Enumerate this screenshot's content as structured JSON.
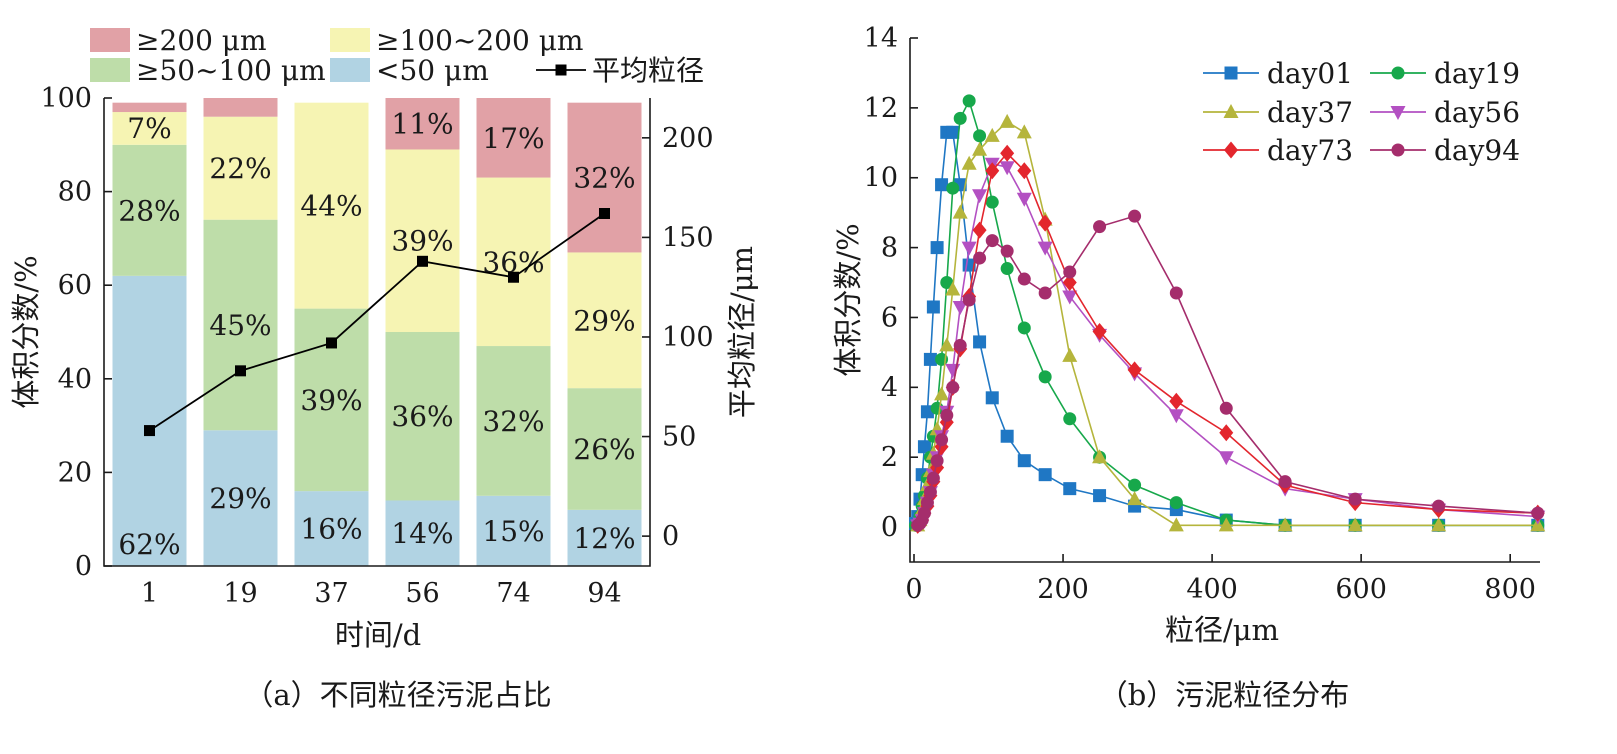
{
  "chart_data": [
    {
      "type": "bar",
      "stacked": true,
      "caption": "（a）不同粒径污泥占比",
      "xlabel": "时间/d",
      "ylabel": "体积分数/%",
      "y2label": "平均粒径/μm",
      "ylim": [
        0,
        100
      ],
      "y2lim": [
        -15,
        220
      ],
      "yticks": [
        0,
        20,
        40,
        60,
        80,
        100
      ],
      "y2ticks": [
        0,
        50,
        100,
        150,
        200
      ],
      "categories": [
        "1",
        "19",
        "37",
        "56",
        "74",
        "94"
      ],
      "series": [
        {
          "name": "<50 μm",
          "color": "#b1d3e3",
          "values": [
            62,
            29,
            16,
            14,
            15,
            12
          ],
          "labels": [
            "62%",
            "29%",
            "16%",
            "14%",
            "15%",
            "12%"
          ]
        },
        {
          "name": "≥50~100 μm",
          "color": "#bedda9",
          "values": [
            28,
            45,
            39,
            36,
            32,
            26
          ],
          "labels": [
            "28%",
            "45%",
            "39%",
            "36%",
            "32%",
            "26%"
          ]
        },
        {
          "name": "≥100~200 μm",
          "color": "#f6f4b3",
          "values": [
            7,
            22,
            44,
            39,
            36,
            29
          ],
          "labels": [
            "7%",
            "22%",
            "44%",
            "39%",
            "36%",
            "29%"
          ]
        },
        {
          "name": "≥200 μm",
          "color": "#e1a1a6",
          "values": [
            2,
            4,
            0,
            11,
            17,
            32
          ],
          "labels": [
            "",
            "",
            "",
            "11%",
            "17%",
            "32%"
          ]
        }
      ],
      "line": {
        "name": "平均粒径",
        "color": "#000000",
        "values": [
          53,
          83,
          97,
          138,
          130,
          162
        ]
      },
      "legend_position": "top"
    },
    {
      "type": "line",
      "caption": "（b）污泥粒径分布",
      "xlabel": "粒径/μm",
      "ylabel": "体积分数/%",
      "xlim": [
        0,
        840
      ],
      "ylim": [
        -1,
        14
      ],
      "xticks": [
        0,
        200,
        400,
        600,
        800
      ],
      "yticks": [
        0,
        2,
        4,
        6,
        8,
        10,
        12,
        14
      ],
      "legend_position": "top-right",
      "series": [
        {
          "name": "day01",
          "color": "#1f77c4",
          "marker": "square",
          "x": [
            2,
            5,
            8,
            11,
            14,
            18,
            22,
            26,
            31,
            37,
            44,
            52,
            62,
            74,
            88,
            105,
            125,
            148,
            176,
            209,
            249,
            296,
            352,
            419,
            498,
            592,
            704,
            837
          ],
          "y": [
            0.1,
            0.3,
            0.8,
            1.5,
            2.3,
            3.3,
            4.8,
            6.3,
            8.0,
            9.8,
            11.3,
            11.3,
            9.8,
            7.5,
            5.3,
            3.7,
            2.6,
            1.9,
            1.5,
            1.1,
            0.9,
            0.6,
            0.5,
            0.2,
            0.05,
            0.05,
            0.05,
            0.05
          ]
        },
        {
          "name": "day19",
          "color": "#17a84b",
          "marker": "circle",
          "x": [
            2,
            5,
            8,
            11,
            14,
            18,
            22,
            26,
            31,
            37,
            44,
            52,
            62,
            74,
            88,
            105,
            125,
            148,
            176,
            209,
            249,
            296,
            352,
            419,
            498,
            592,
            704,
            837
          ],
          "y": [
            0.05,
            0.1,
            0.3,
            0.6,
            0.9,
            1.4,
            2.0,
            2.6,
            3.4,
            4.8,
            7.0,
            9.7,
            11.7,
            12.2,
            11.2,
            9.3,
            7.4,
            5.7,
            4.3,
            3.1,
            2.0,
            1.2,
            0.7,
            0.2,
            0.05,
            0.05,
            0.05,
            0.05
          ]
        },
        {
          "name": "day37",
          "color": "#b5b53c",
          "marker": "triangle-up",
          "x": [
            5,
            8,
            11,
            14,
            18,
            22,
            26,
            31,
            37,
            44,
            52,
            62,
            74,
            88,
            105,
            125,
            148,
            176,
            209,
            249,
            296,
            352,
            419,
            498,
            592,
            704,
            837
          ],
          "y": [
            0.05,
            0.2,
            0.5,
            0.8,
            1.2,
            1.6,
            2.1,
            2.8,
            3.8,
            5.2,
            6.8,
            9.0,
            10.4,
            10.8,
            11.2,
            11.6,
            11.3,
            8.8,
            4.9,
            2.0,
            0.8,
            0.05,
            0.05,
            0.05,
            0.05,
            0.05,
            0.05
          ]
        },
        {
          "name": "day56",
          "color": "#b350c2",
          "marker": "triangle-down",
          "x": [
            5,
            8,
            11,
            14,
            18,
            22,
            26,
            31,
            37,
            44,
            52,
            62,
            74,
            88,
            105,
            125,
            148,
            176,
            209,
            249,
            296,
            352,
            419,
            498,
            592,
            704,
            837
          ],
          "y": [
            0.05,
            0.1,
            0.2,
            0.4,
            0.7,
            1.0,
            1.5,
            2.0,
            2.6,
            3.3,
            4.5,
            6.3,
            8.0,
            9.5,
            10.4,
            10.3,
            9.4,
            8.0,
            6.6,
            5.5,
            4.4,
            3.2,
            2.0,
            1.1,
            0.8,
            0.5,
            0.3
          ]
        },
        {
          "name": "day73",
          "color": "#e3262d",
          "marker": "diamond",
          "x": [
            5,
            8,
            11,
            14,
            18,
            22,
            26,
            31,
            37,
            44,
            52,
            62,
            74,
            88,
            105,
            125,
            148,
            176,
            209,
            249,
            296,
            352,
            419,
            498,
            592,
            704,
            837
          ],
          "y": [
            0.05,
            0.1,
            0.2,
            0.4,
            0.6,
            0.9,
            1.3,
            1.7,
            2.3,
            3.0,
            4.0,
            5.1,
            6.6,
            8.5,
            10.2,
            10.7,
            10.2,
            8.7,
            7.0,
            5.6,
            4.5,
            3.6,
            2.7,
            1.2,
            0.7,
            0.5,
            0.4
          ]
        },
        {
          "name": "day94",
          "color": "#a52d6c",
          "marker": "circle",
          "x": [
            5,
            8,
            11,
            14,
            18,
            22,
            26,
            31,
            37,
            44,
            52,
            62,
            74,
            88,
            105,
            125,
            148,
            176,
            209,
            249,
            296,
            352,
            419,
            498,
            592,
            704,
            837
          ],
          "y": [
            0.05,
            0.1,
            0.2,
            0.4,
            0.7,
            1.0,
            1.4,
            1.9,
            2.5,
            3.2,
            4.0,
            5.2,
            6.5,
            7.7,
            8.2,
            7.9,
            7.1,
            6.7,
            7.3,
            8.6,
            8.9,
            6.7,
            3.4,
            1.3,
            0.8,
            0.6,
            0.4
          ]
        }
      ]
    }
  ]
}
